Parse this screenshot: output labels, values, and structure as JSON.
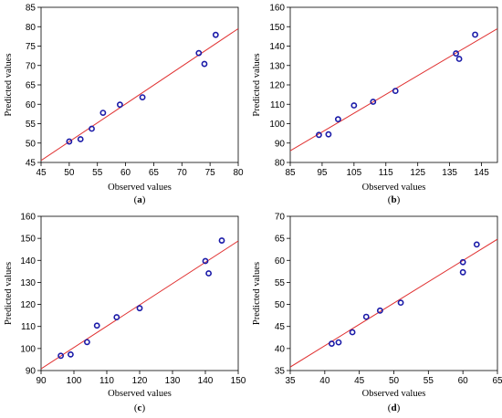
{
  "chart_data": [
    {
      "type": "scatter",
      "panel": "(a)",
      "xlabel": "Observed values",
      "ylabel": "Predicted values",
      "xlim": [
        45,
        80
      ],
      "ylim": [
        45,
        85
      ],
      "xticks": [
        45,
        50,
        55,
        60,
        65,
        70,
        75,
        80
      ],
      "yticks": [
        45,
        50,
        55,
        60,
        65,
        70,
        75,
        80,
        85
      ],
      "points": [
        {
          "x": 50,
          "y": 50.4
        },
        {
          "x": 52,
          "y": 51.0
        },
        {
          "x": 54,
          "y": 53.7
        },
        {
          "x": 56,
          "y": 57.8
        },
        {
          "x": 59,
          "y": 59.9
        },
        {
          "x": 63,
          "y": 61.8
        },
        {
          "x": 73,
          "y": 73.2
        },
        {
          "x": 74,
          "y": 70.4
        },
        {
          "x": 76,
          "y": 77.9
        }
      ],
      "fit_line": {
        "x": [
          45,
          80
        ],
        "y": [
          45.5,
          79.5
        ]
      },
      "colors": {
        "points": "#1a1aa8",
        "line": "#e03030"
      }
    },
    {
      "type": "scatter",
      "panel": "(b)",
      "xlabel": "Observed values",
      "ylabel": "Predicted values",
      "xlim": [
        85,
        150
      ],
      "ylim": [
        80,
        160
      ],
      "xticks": [
        85,
        95,
        105,
        115,
        125,
        135,
        145
      ],
      "yticks": [
        80,
        90,
        100,
        110,
        120,
        130,
        140,
        150,
        160
      ],
      "points": [
        {
          "x": 94,
          "y": 94.2
        },
        {
          "x": 97,
          "y": 94.5
        },
        {
          "x": 100,
          "y": 102.3
        },
        {
          "x": 105,
          "y": 109.4
        },
        {
          "x": 111,
          "y": 111.3
        },
        {
          "x": 118,
          "y": 116.9
        },
        {
          "x": 137,
          "y": 136.2
        },
        {
          "x": 138,
          "y": 133.4
        },
        {
          "x": 143,
          "y": 145.9
        }
      ],
      "fit_line": {
        "x": [
          85,
          150
        ],
        "y": [
          86,
          149
        ]
      },
      "colors": {
        "points": "#1a1aa8",
        "line": "#e03030"
      }
    },
    {
      "type": "scatter",
      "panel": "(c)",
      "xlabel": "Observed values",
      "ylabel": "Predicted values",
      "xlim": [
        90,
        150
      ],
      "ylim": [
        90,
        160
      ],
      "xticks": [
        90,
        100,
        110,
        120,
        130,
        140,
        150
      ],
      "yticks": [
        90,
        100,
        110,
        120,
        130,
        140,
        150,
        160
      ],
      "points": [
        {
          "x": 96,
          "y": 96.7
        },
        {
          "x": 99,
          "y": 97.3
        },
        {
          "x": 104,
          "y": 102.9
        },
        {
          "x": 107,
          "y": 110.4
        },
        {
          "x": 113,
          "y": 114.2
        },
        {
          "x": 120,
          "y": 118.3
        },
        {
          "x": 140,
          "y": 139.7
        },
        {
          "x": 141,
          "y": 134.1
        },
        {
          "x": 145,
          "y": 149.0
        }
      ],
      "fit_line": {
        "x": [
          90,
          150
        ],
        "y": [
          90.8,
          148.8
        ]
      },
      "colors": {
        "points": "#1a1aa8",
        "line": "#e03030"
      }
    },
    {
      "type": "scatter",
      "panel": "(d)",
      "xlabel": "Observed values",
      "ylabel": "Predicted values",
      "xlim": [
        35,
        65
      ],
      "ylim": [
        35,
        70
      ],
      "xticks": [
        35,
        40,
        45,
        50,
        55,
        60,
        65
      ],
      "yticks": [
        35,
        40,
        45,
        50,
        55,
        60,
        65,
        70
      ],
      "points": [
        {
          "x": 41,
          "y": 41.1
        },
        {
          "x": 42,
          "y": 41.4
        },
        {
          "x": 44,
          "y": 43.7
        },
        {
          "x": 46,
          "y": 47.2
        },
        {
          "x": 48,
          "y": 48.6
        },
        {
          "x": 51,
          "y": 50.4
        },
        {
          "x": 60,
          "y": 59.6
        },
        {
          "x": 60,
          "y": 57.3
        },
        {
          "x": 62,
          "y": 63.6
        }
      ],
      "fit_line": {
        "x": [
          35,
          65
        ],
        "y": [
          35.8,
          64.8
        ]
      },
      "colors": {
        "points": "#1a1aa8",
        "line": "#e03030"
      }
    }
  ]
}
